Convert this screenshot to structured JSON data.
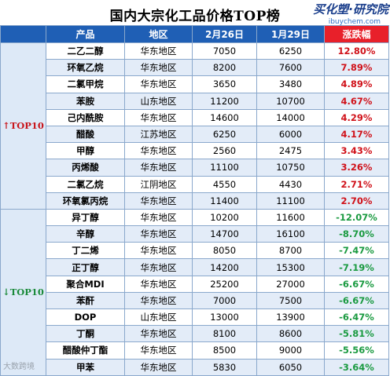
{
  "title": "国内大宗化工品价格TOP榜",
  "logo": {
    "main": "买化塑·研究院",
    "sub": "ibuychem.com"
  },
  "header": {
    "product": "产品",
    "region": "地区",
    "date1": "2月26日",
    "date2": "1月29日",
    "change": "涨跌幅"
  },
  "groups": {
    "top": "TOP10",
    "bottom": "TOP10"
  },
  "arrows": {
    "up": "↑",
    "down": "↓"
  },
  "colors": {
    "header_blue": "#1f5fb5",
    "change_header_red": "#e8202a",
    "up_red": "#d0121a",
    "down_green": "#1a9a40"
  },
  "rows": [
    {
      "product": "二乙二醇",
      "region": "华东地区",
      "feb26": "7050",
      "jan29": "6250",
      "change": "12.80%"
    },
    {
      "product": "环氧乙烷",
      "region": "华东地区",
      "feb26": "8200",
      "jan29": "7600",
      "change": "7.89%"
    },
    {
      "product": "二氯甲烷",
      "region": "华东地区",
      "feb26": "3650",
      "jan29": "3480",
      "change": "4.89%"
    },
    {
      "product": "苯胺",
      "region": "山东地区",
      "feb26": "11200",
      "jan29": "10700",
      "change": "4.67%"
    },
    {
      "product": "己内酰胺",
      "region": "华东地区",
      "feb26": "14600",
      "jan29": "14000",
      "change": "4.29%"
    },
    {
      "product": "醋酸",
      "region": "江苏地区",
      "feb26": "6250",
      "jan29": "6000",
      "change": "4.17%"
    },
    {
      "product": "甲醇",
      "region": "华东地区",
      "feb26": "2560",
      "jan29": "2475",
      "change": "3.43%"
    },
    {
      "product": "丙烯酸",
      "region": "华东地区",
      "feb26": "11100",
      "jan29": "10750",
      "change": "3.26%"
    },
    {
      "product": "二氯乙烷",
      "region": "江阴地区",
      "feb26": "4550",
      "jan29": "4430",
      "change": "2.71%"
    },
    {
      "product": "环氧氯丙烷",
      "region": "华东地区",
      "feb26": "11400",
      "jan29": "11100",
      "change": "2.70%"
    },
    {
      "product": "异丁醇",
      "region": "华东地区",
      "feb26": "10200",
      "jan29": "11600",
      "change": "-12.07%"
    },
    {
      "product": "辛醇",
      "region": "华东地区",
      "feb26": "14700",
      "jan29": "16100",
      "change": "-8.70%"
    },
    {
      "product": "丁二烯",
      "region": "华东地区",
      "feb26": "8050",
      "jan29": "8700",
      "change": "-7.47%"
    },
    {
      "product": "正丁醇",
      "region": "华东地区",
      "feb26": "14200",
      "jan29": "15300",
      "change": "-7.19%"
    },
    {
      "product": "聚合MDI",
      "region": "华东地区",
      "feb26": "25200",
      "jan29": "27000",
      "change": "-6.67%"
    },
    {
      "product": "苯酐",
      "region": "华东地区",
      "feb26": "7000",
      "jan29": "7500",
      "change": "-6.67%"
    },
    {
      "product": "DOP",
      "region": "山东地区",
      "feb26": "13000",
      "jan29": "13900",
      "change": "-6.47%"
    },
    {
      "product": "丁酮",
      "region": "华东地区",
      "feb26": "8100",
      "jan29": "8600",
      "change": "-5.81%"
    },
    {
      "product": "醋酸仲丁酯",
      "region": "华东地区",
      "feb26": "8500",
      "jan29": "9000",
      "change": "-5.56%"
    },
    {
      "product": "甲苯",
      "region": "华东地区",
      "feb26": "5830",
      "jan29": "6050",
      "change": "-3.64%"
    }
  ],
  "watermark": "大数跨境"
}
